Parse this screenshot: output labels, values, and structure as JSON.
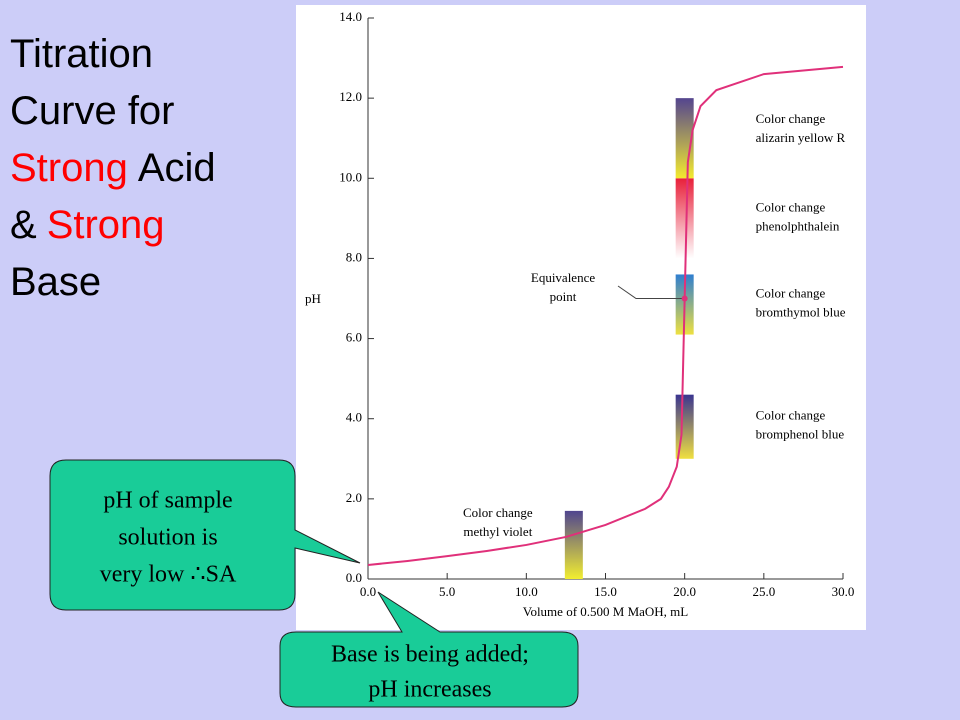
{
  "title": [
    [
      {
        "text": "Titration",
        "color": "#000000"
      }
    ],
    [
      {
        "text": "Curve for",
        "color": "#000000"
      }
    ],
    [
      {
        "text": "Strong",
        "color": "#ff0000"
      },
      {
        "text": "Acid",
        "color": "#000000"
      }
    ],
    [
      {
        "text": "&",
        "color": "#000000"
      },
      {
        "text": "Strong",
        "color": "#ff0000"
      }
    ],
    [
      {
        "text": "Base",
        "color": "#000000"
      }
    ]
  ],
  "callouts": [
    {
      "lines": [
        "pH of sample",
        "solution is",
        "very low ∴SA"
      ]
    },
    {
      "lines": [
        "Base is being added;",
        "pH increases"
      ]
    }
  ],
  "chart_data": {
    "type": "line",
    "x_label": "Volume of 0.500 M MaOH, mL",
    "y_label": "pH",
    "xlim": [
      0,
      30
    ],
    "ylim": [
      0,
      14
    ],
    "xticks": [
      {
        "value": 0,
        "label": "0.0"
      },
      {
        "value": 5,
        "label": "5.0"
      },
      {
        "value": 10,
        "label": "10.0"
      },
      {
        "value": 15,
        "label": "15.0"
      },
      {
        "value": 20,
        "label": "20.0"
      },
      {
        "value": 25,
        "label": "25.0"
      },
      {
        "value": 30,
        "label": "30.0"
      }
    ],
    "yticks": [
      {
        "value": 0,
        "label": "0.0"
      },
      {
        "value": 2,
        "label": "2.0"
      },
      {
        "value": 4,
        "label": "4.0"
      },
      {
        "value": 6,
        "label": "6.0"
      },
      {
        "value": 8,
        "label": "8.0"
      },
      {
        "value": 10,
        "label": "10.0"
      },
      {
        "value": 12,
        "label": "12.0"
      },
      {
        "value": 14,
        "label": "14.0"
      }
    ],
    "x": [
      0,
      2.5,
      5,
      7.5,
      10,
      12.5,
      15,
      17.5,
      18.5,
      19,
      19.5,
      19.8,
      20,
      20.2,
      20.5,
      21,
      22,
      25,
      30
    ],
    "series": [
      {
        "color": "#e0307a",
        "values": [
          0.35,
          0.45,
          0.57,
          0.7,
          0.85,
          1.05,
          1.35,
          1.75,
          2.0,
          2.3,
          2.8,
          3.6,
          7.0,
          10.4,
          11.2,
          11.8,
          12.2,
          12.6,
          12.78
        ]
      }
    ],
    "bands": [
      {
        "label": [
          "Color change",
          "methyl violet"
        ],
        "x": 13,
        "low": 0,
        "high": 1.7,
        "colors": [
          "#50458f",
          "#f2ee30"
        ]
      },
      {
        "label": [
          "Color change",
          "bromphenol blue"
        ],
        "x": 20,
        "low": 3.0,
        "high": 4.6,
        "colors": [
          "#3a3590",
          "#f0e040"
        ]
      },
      {
        "label": [
          "Color change",
          "bromthymol blue"
        ],
        "x": 20,
        "low": 6.1,
        "high": 7.6,
        "colors": [
          "#2f7ed0",
          "#eee040"
        ]
      },
      {
        "label": [
          "Color change",
          "phenolphthalein"
        ],
        "x": 20,
        "low": 8.0,
        "high": 10.0,
        "colors": [
          "#e8203a",
          "#ffffff"
        ]
      },
      {
        "label": [
          "Color change",
          "alizarin yellow R"
        ],
        "x": 20,
        "low": 10.0,
        "high": 12.0,
        "colors": [
          "#54458f",
          "#f3ea2e"
        ]
      }
    ],
    "annotation": {
      "text": [
        "Equivalence",
        "point"
      ],
      "x": 20,
      "y": 7.0
    }
  }
}
